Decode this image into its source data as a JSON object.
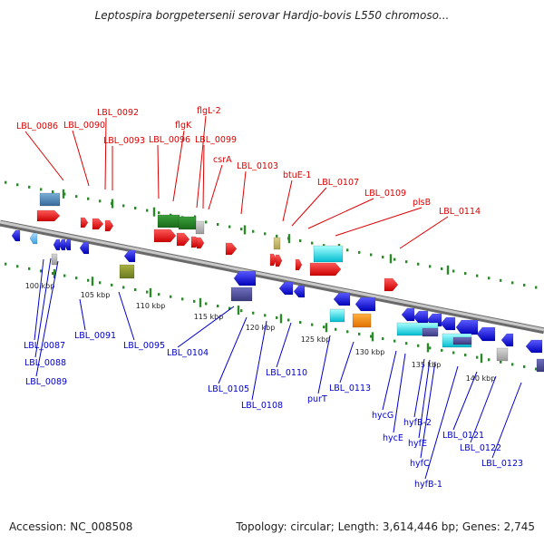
{
  "title": "Leptospira borgpetersenii serovar Hardjo-bovis L550 chromoso...",
  "footer": {
    "accession": "Accession: NC_008508",
    "topology": "Topology: circular; Length: 3,614,446 bp; Genes: 2,745"
  },
  "colors": {
    "forward_label": "#dd0000",
    "reverse_label": "#0000cc",
    "backbone": "#9a9a9a",
    "tick": "#2a8a2a"
  },
  "scale_ticks": [
    "100 kbp",
    "105 kbp",
    "110 kbp",
    "115 kbp",
    "120 kbp",
    "125 kbp",
    "130 kbp",
    "135 kbp",
    "140 kbp"
  ],
  "forward_labels": [
    "LBL_0086",
    "LBL_0090",
    "LBL_0092",
    "LBL_0093",
    "flgK",
    "LBL_0096",
    "flgL-2",
    "LBL_0099",
    "csrA",
    "LBL_0103",
    "btuE-1",
    "LBL_0107",
    "LBL_0109",
    "plsB",
    "LBL_0114"
  ],
  "reverse_labels": [
    "LBL_0087",
    "LBL_0088",
    "LBL_0089",
    "LBL_0091",
    "LBL_0095",
    "LBL_0104",
    "LBL_0105",
    "LBL_0108",
    "LBL_0110",
    "purT",
    "LBL_0113",
    "hycG",
    "hycE",
    "hyfB-2",
    "hyfE",
    "hyfC",
    "hyfB-1",
    "LBL_0121",
    "LBL_0122",
    "LBL_0123"
  ]
}
